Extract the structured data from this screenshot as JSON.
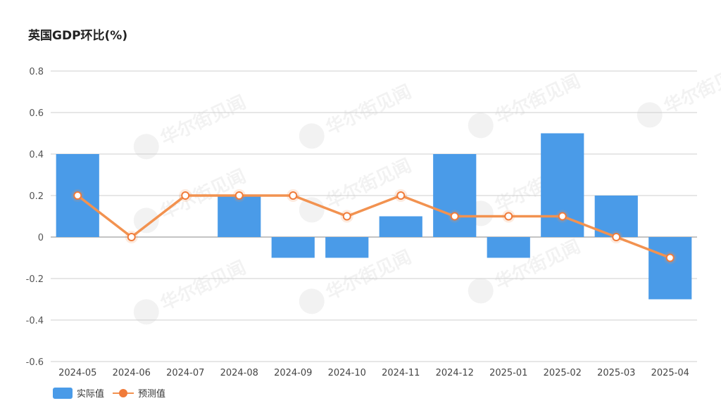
{
  "title": "英国GDP环比(%)",
  "watermark": "华尔街见闻",
  "colors": {
    "bar": "#4a9be8",
    "line": "#f29250",
    "line_dot": "#f07b3a",
    "grid": "#cfcfcf",
    "axis_text": "#555555"
  },
  "legend": {
    "actual": "实际值",
    "forecast": "预测值"
  },
  "chart_data": {
    "type": "bar",
    "title": "英国GDP环比(%)",
    "categories": [
      "2024-05",
      "2024-06",
      "2024-07",
      "2024-08",
      "2024-09",
      "2024-10",
      "2024-11",
      "2024-12",
      "2025-01",
      "2025-02",
      "2025-03",
      "2025-04"
    ],
    "ylim": [
      -0.6,
      0.8
    ],
    "yticks": [
      "0.8",
      "0.6",
      "0.4",
      "0.2",
      "0",
      "-0.2",
      "-0.4",
      "-0.6"
    ],
    "grid": true,
    "legend_position": "bottom-left",
    "series": [
      {
        "name": "实际值",
        "type": "bar",
        "values": [
          0.4,
          0,
          0,
          0.2,
          -0.1,
          -0.1,
          0.1,
          0.4,
          -0.1,
          0.5,
          0.2,
          -0.3
        ]
      },
      {
        "name": "预测值",
        "type": "line",
        "values": [
          0.2,
          0,
          0.2,
          0.2,
          0.2,
          0.1,
          0.2,
          0.1,
          0.1,
          0.1,
          0,
          -0.1
        ]
      }
    ]
  }
}
